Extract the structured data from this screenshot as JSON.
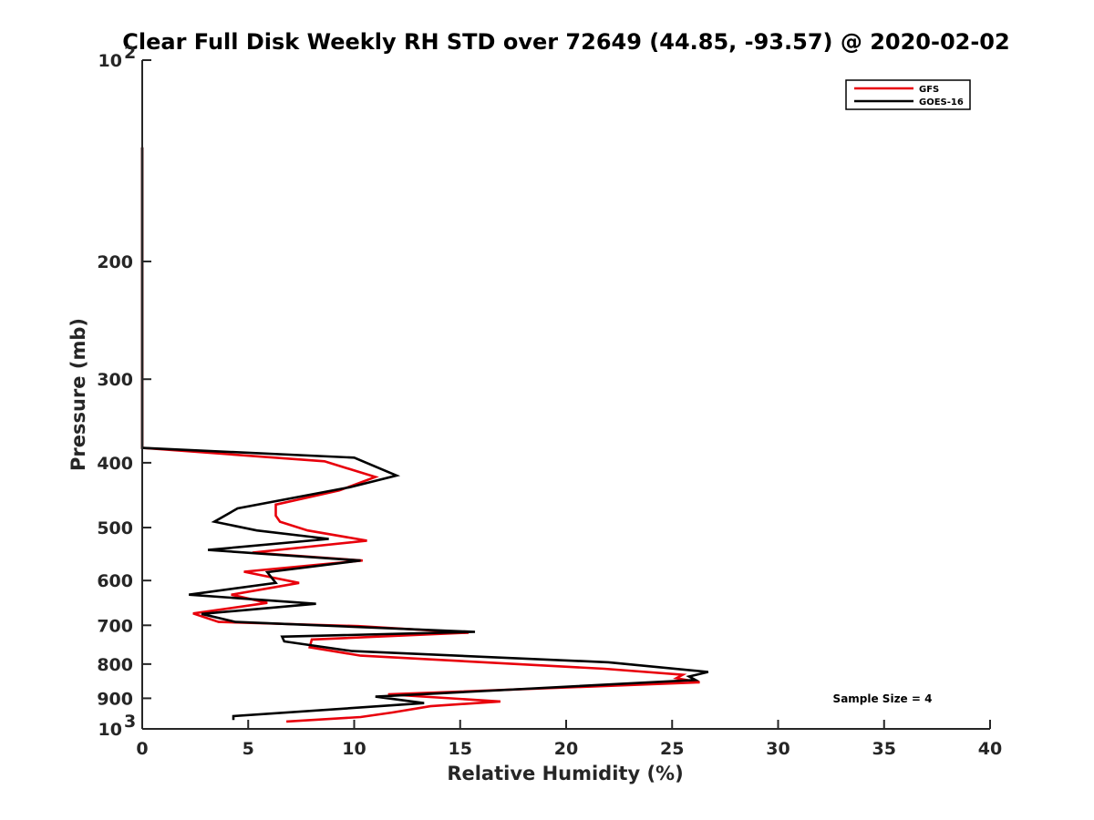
{
  "chart_data": {
    "type": "line",
    "title": "Clear Full Disk Weekly RH STD over 72649 (44.85, -93.57) @ 2020-02-02",
    "xlabel": "Relative Humidity (%)",
    "ylabel": "Pressure (mb)",
    "xlim": [
      0,
      40
    ],
    "ylim": [
      100,
      1000
    ],
    "yscale": "log",
    "y_reversed": true,
    "x_ticks": [
      "0",
      "5",
      "10",
      "15",
      "20",
      "25",
      "30",
      "35",
      "40"
    ],
    "y_ticks": [
      {
        "value": 100,
        "label": "10",
        "sup": "2"
      },
      {
        "value": 200,
        "label": "200",
        "sup": ""
      },
      {
        "value": 300,
        "label": "300",
        "sup": ""
      },
      {
        "value": 400,
        "label": "400",
        "sup": ""
      },
      {
        "value": 500,
        "label": "500",
        "sup": ""
      },
      {
        "value": 600,
        "label": "600",
        "sup": ""
      },
      {
        "value": 700,
        "label": "700",
        "sup": ""
      },
      {
        "value": 800,
        "label": "800",
        "sup": ""
      },
      {
        "value": 900,
        "label": "900",
        "sup": ""
      },
      {
        "value": 1000,
        "label": "10",
        "sup": "3"
      }
    ],
    "grid": false,
    "legend_position": "top-right",
    "annotation": "Sample Size = 4",
    "series": [
      {
        "name": "GFS",
        "color": "#e8000b",
        "points": [
          [
            0,
            135
          ],
          [
            0,
            380
          ],
          [
            8.6,
            398
          ],
          [
            11.0,
            420
          ],
          [
            9.3,
            440
          ],
          [
            6.3,
            462
          ],
          [
            6.3,
            480
          ],
          [
            6.5,
            490
          ],
          [
            7.8,
            505
          ],
          [
            10.6,
            523
          ],
          [
            5.2,
            545
          ],
          [
            10.4,
            560
          ],
          [
            4.8,
            582
          ],
          [
            7.4,
            605
          ],
          [
            4.2,
            630
          ],
          [
            5.9,
            648
          ],
          [
            2.4,
            672
          ],
          [
            3.6,
            692
          ],
          [
            10.2,
            702
          ],
          [
            15.4,
            718
          ],
          [
            8.0,
            735
          ],
          [
            7.9,
            755
          ],
          [
            10.3,
            777
          ],
          [
            21.8,
            813
          ],
          [
            25.5,
            830
          ],
          [
            25.2,
            840
          ],
          [
            26.3,
            852
          ],
          [
            11.6,
            888
          ],
          [
            16.9,
            910
          ],
          [
            13.6,
            925
          ],
          [
            11.8,
            945
          ],
          [
            10.3,
            960
          ],
          [
            6.8,
            975
          ]
        ]
      },
      {
        "name": "GOES-16",
        "color": "#000000",
        "points": [
          [
            0,
            135
          ],
          [
            0,
            380
          ],
          [
            10.0,
            393
          ],
          [
            12.0,
            418
          ],
          [
            9.8,
            435
          ],
          [
            4.5,
            468
          ],
          [
            3.4,
            490
          ],
          [
            5.4,
            505
          ],
          [
            8.8,
            520
          ],
          [
            3.1,
            540
          ],
          [
            10.3,
            560
          ],
          [
            5.9,
            583
          ],
          [
            6.3,
            605
          ],
          [
            2.2,
            630
          ],
          [
            8.2,
            650
          ],
          [
            2.8,
            673
          ],
          [
            4.4,
            692
          ],
          [
            15.7,
            716
          ],
          [
            6.6,
            728
          ],
          [
            6.7,
            740
          ],
          [
            9.9,
            765
          ],
          [
            22.0,
            795
          ],
          [
            26.7,
            822
          ],
          [
            25.8,
            835
          ],
          [
            26.1,
            845
          ],
          [
            13.1,
            888
          ],
          [
            11.0,
            895
          ],
          [
            13.3,
            915
          ],
          [
            4.3,
            957
          ],
          [
            4.3,
            970
          ]
        ]
      }
    ]
  }
}
